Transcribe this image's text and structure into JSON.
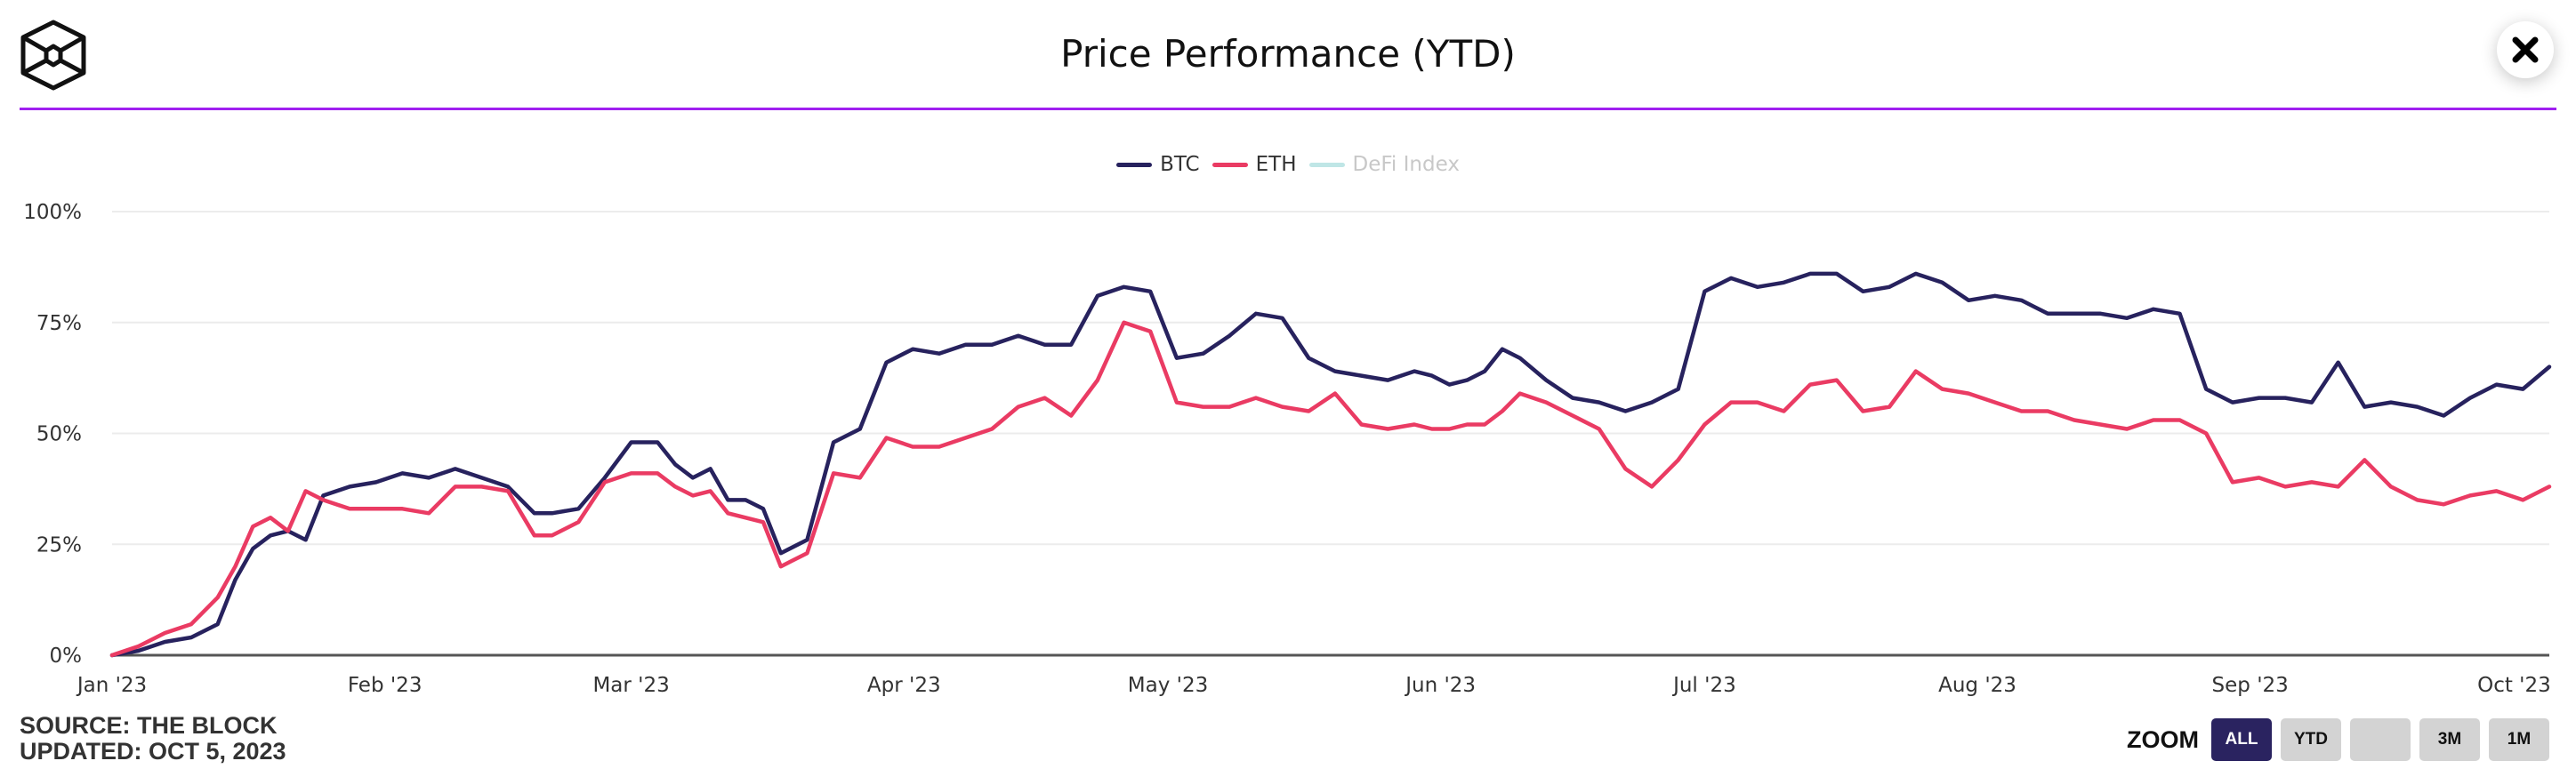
{
  "header": {
    "title": "Price Performance (YTD)",
    "logo_icon": "hexagon-cube-logo-icon",
    "close_icon": "close-x-icon",
    "accent_color": "#a020f0"
  },
  "footer": {
    "source": "SOURCE: THE BLOCK",
    "updated": "UPDATED: OCT 5, 2023"
  },
  "zoom": {
    "label": "ZOOM",
    "buttons": [
      {
        "label": "ALL",
        "active": true
      },
      {
        "label": "YTD",
        "active": false
      },
      {
        "label": "",
        "active": false
      },
      {
        "label": "3M",
        "active": false
      },
      {
        "label": "1M",
        "active": false
      }
    ]
  },
  "chart_data": {
    "type": "line",
    "title": "Price Performance (YTD)",
    "xlabel": "",
    "ylabel": "",
    "ylim": [
      0,
      100
    ],
    "yticks": [
      "0%",
      "25%",
      "50%",
      "75%",
      "100%"
    ],
    "xticks": [
      "Jan '23",
      "Feb '23",
      "Mar '23",
      "Apr '23",
      "May '23",
      "Jun '23",
      "Jul '23",
      "Aug '23",
      "Sep '23",
      "Oct '23"
    ],
    "xtick_days": [
      0,
      31,
      59,
      90,
      120,
      151,
      181,
      212,
      243,
      273
    ],
    "x_range_days": [
      0,
      277
    ],
    "grid": true,
    "legend": "top-center",
    "series": [
      {
        "name": "BTC",
        "color": "#27225e",
        "visible": true,
        "days": [
          0,
          3,
          6,
          9,
          12,
          14,
          16,
          18,
          20,
          22,
          24,
          27,
          30,
          33,
          36,
          39,
          42,
          45,
          48,
          50,
          53,
          56,
          59,
          62,
          64,
          66,
          68,
          70,
          72,
          74,
          76,
          79,
          82,
          85,
          88,
          91,
          94,
          97,
          100,
          103,
          106,
          109,
          112,
          115,
          118,
          121,
          124,
          127,
          130,
          133,
          136,
          139,
          142,
          145,
          148,
          150,
          152,
          154,
          156,
          158,
          160,
          163,
          166,
          169,
          172,
          175,
          178,
          181,
          184,
          187,
          190,
          193,
          196,
          199,
          202,
          205,
          208,
          211,
          214,
          217,
          220,
          223,
          226,
          229,
          232,
          235,
          238,
          241,
          244,
          247,
          250,
          253,
          256,
          259,
          262,
          265,
          268,
          271,
          274,
          277
        ],
        "values": [
          0,
          1,
          3,
          4,
          7,
          17,
          24,
          27,
          28,
          26,
          36,
          38,
          39,
          41,
          40,
          42,
          40,
          38,
          32,
          32,
          33,
          40,
          48,
          48,
          43,
          40,
          42,
          35,
          35,
          33,
          23,
          26,
          48,
          51,
          66,
          69,
          68,
          70,
          70,
          72,
          70,
          70,
          81,
          83,
          82,
          67,
          68,
          72,
          77,
          76,
          67,
          64,
          63,
          62,
          64,
          63,
          61,
          62,
          64,
          69,
          67,
          62,
          58,
          57,
          55,
          57,
          60,
          82,
          85,
          83,
          84,
          86,
          86,
          82,
          83,
          86,
          84,
          80,
          81,
          80,
          77,
          77,
          77,
          76,
          78,
          77,
          60,
          57,
          58,
          58,
          57,
          66,
          56,
          57,
          56,
          54,
          58,
          61,
          60,
          65
        ]
      },
      {
        "name": "ETH",
        "color": "#ea3b63",
        "visible": true,
        "days": [
          0,
          3,
          6,
          9,
          12,
          14,
          16,
          18,
          20,
          22,
          24,
          27,
          30,
          33,
          36,
          39,
          42,
          45,
          48,
          50,
          53,
          56,
          59,
          62,
          64,
          66,
          68,
          70,
          72,
          74,
          76,
          79,
          82,
          85,
          88,
          91,
          94,
          97,
          100,
          103,
          106,
          109,
          112,
          115,
          118,
          121,
          124,
          127,
          130,
          133,
          136,
          139,
          142,
          145,
          148,
          150,
          152,
          154,
          156,
          158,
          160,
          163,
          166,
          169,
          172,
          175,
          178,
          181,
          184,
          187,
          190,
          193,
          196,
          199,
          202,
          205,
          208,
          211,
          214,
          217,
          220,
          223,
          226,
          229,
          232,
          235,
          238,
          241,
          244,
          247,
          250,
          253,
          256,
          259,
          262,
          265,
          268,
          271,
          274,
          277
        ],
        "values": [
          0,
          2,
          5,
          7,
          13,
          20,
          29,
          31,
          28,
          37,
          35,
          33,
          33,
          33,
          32,
          38,
          38,
          37,
          27,
          27,
          30,
          39,
          41,
          41,
          38,
          36,
          37,
          32,
          31,
          30,
          20,
          23,
          41,
          40,
          49,
          47,
          47,
          49,
          51,
          56,
          58,
          54,
          62,
          75,
          73,
          57,
          56,
          56,
          58,
          56,
          55,
          59,
          52,
          51,
          52,
          51,
          51,
          52,
          52,
          55,
          59,
          57,
          54,
          51,
          42,
          38,
          44,
          52,
          57,
          57,
          55,
          61,
          62,
          55,
          56,
          64,
          60,
          59,
          57,
          55,
          55,
          53,
          52,
          51,
          53,
          53,
          50,
          39,
          40,
          38,
          39,
          38,
          44,
          38,
          35,
          34,
          36,
          37,
          35,
          38
        ]
      },
      {
        "name": "DeFi Index",
        "color": "#bfe6e6",
        "visible": false,
        "days": [],
        "values": []
      }
    ]
  }
}
